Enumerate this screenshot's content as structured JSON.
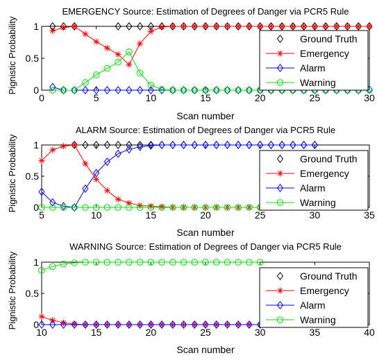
{
  "chart_data": [
    {
      "type": "line",
      "title": "EMERGENCY Source: Estimation of Degrees of Danger via PCR5 Rule",
      "xlabel": "Scan number",
      "ylabel": "Pignistic Probability",
      "xlim": [
        0,
        30
      ],
      "ylim": [
        0,
        1
      ],
      "xticks": [
        "0",
        "5",
        "10",
        "15",
        "20",
        "25",
        "30"
      ],
      "yticks": [
        "0",
        "0.5",
        "1"
      ],
      "grid": false,
      "legend_position": "right",
      "x": [
        1,
        2,
        3,
        4,
        5,
        6,
        7,
        8,
        9,
        10,
        11,
        12,
        13,
        14,
        15,
        16,
        17,
        18,
        19,
        20,
        21,
        22,
        23,
        24,
        25,
        26,
        27,
        28,
        29,
        30
      ],
      "series": [
        {
          "name": "Ground Truth",
          "marker": "diamond",
          "line": "none",
          "color": "#000000",
          "values": [
            1,
            1,
            1,
            null,
            null,
            null,
            1,
            1,
            1,
            1,
            1,
            1,
            1,
            1,
            1,
            1,
            1,
            1,
            1,
            1,
            1,
            1,
            1,
            1,
            1,
            1,
            1,
            1,
            1,
            1
          ]
        },
        {
          "name": "Emergency",
          "marker": "star",
          "line": "solid",
          "color": "#ff0000",
          "values": [
            0.93,
            0.98,
            1.0,
            0.88,
            0.76,
            0.66,
            0.56,
            0.4,
            0.73,
            0.92,
            0.99,
            1,
            1,
            1,
            1,
            1,
            1,
            1,
            1,
            1,
            1,
            1,
            1,
            1,
            1,
            1,
            1,
            1,
            1,
            1
          ]
        },
        {
          "name": "Alarm",
          "marker": "diamond",
          "line": "solid",
          "color": "#0000ff",
          "values": [
            0.05,
            0,
            0,
            0,
            0,
            0,
            0,
            0,
            0,
            0,
            0,
            0,
            0,
            0,
            0,
            0,
            0,
            0,
            0,
            0,
            0,
            0,
            0,
            0,
            0,
            0,
            0,
            0,
            0,
            0.01
          ]
        },
        {
          "name": "Warning",
          "marker": "circle",
          "line": "solid",
          "color": "#00dd00",
          "values": [
            0,
            0,
            0,
            0.12,
            0.24,
            0.34,
            0.44,
            0.6,
            0.27,
            0.08,
            0.01,
            0,
            0,
            0,
            0,
            0,
            0,
            0,
            0,
            0,
            0,
            0,
            0,
            0,
            0,
            0,
            0,
            0,
            0,
            0
          ]
        }
      ]
    },
    {
      "type": "line",
      "title": "ALARM Source: Estimation of Degrees of Danger via PCR5 Rule",
      "xlabel": "Scan number",
      "ylabel": "Pignistic Probability",
      "xlim": [
        5,
        35
      ],
      "ylim": [
        0,
        1
      ],
      "xticks": [
        "5",
        "10",
        "15",
        "20",
        "25",
        "30",
        "35"
      ],
      "yticks": [
        "0",
        "0.5",
        "1"
      ],
      "grid": false,
      "legend_position": "right",
      "x": [
        5,
        6,
        7,
        8,
        9,
        10,
        11,
        12,
        13,
        14,
        15,
        16,
        17,
        18,
        19,
        20,
        21,
        22,
        23,
        24,
        25,
        26,
        27,
        28,
        29,
        30
      ],
      "series": [
        {
          "name": "Ground Truth",
          "marker": "diamond",
          "line": "none",
          "color": "#000000",
          "values": [
            null,
            null,
            null,
            1,
            1,
            1,
            1,
            1,
            1,
            1,
            1,
            1,
            1,
            1,
            1,
            1,
            1,
            1,
            1,
            1,
            1,
            1,
            1,
            1,
            1,
            1
          ]
        },
        {
          "name": "Emergency",
          "marker": "star",
          "line": "solid",
          "color": "#ff0000",
          "values": [
            0.75,
            0.92,
            0.98,
            1.0,
            0.7,
            0.45,
            0.27,
            0.13,
            0.07,
            0.03,
            0.02,
            0.01,
            0,
            0,
            0,
            0,
            0,
            0,
            0,
            0,
            0,
            0,
            0,
            0,
            0,
            0
          ]
        },
        {
          "name": "Alarm",
          "marker": "diamond",
          "line": "solid",
          "color": "#0000ff",
          "values": [
            0.25,
            0.08,
            0.02,
            0,
            0.3,
            0.55,
            0.73,
            0.86,
            0.93,
            0.97,
            0.99,
            1,
            1,
            1,
            1,
            1,
            1,
            1,
            1,
            1,
            1,
            1,
            1,
            1,
            1,
            1
          ]
        },
        {
          "name": "Warning",
          "marker": "circle",
          "line": "solid",
          "color": "#00dd00",
          "values": [
            0,
            0,
            0,
            0,
            0,
            0,
            0,
            0,
            0,
            0,
            0,
            0,
            0,
            0,
            0,
            0,
            0,
            0,
            0,
            0,
            0,
            0,
            0,
            0,
            0,
            0
          ]
        }
      ]
    },
    {
      "type": "line",
      "title": "WARNING Source: Estimation of Degrees of Danger via PCR5 Rule",
      "xlabel": "Scan number",
      "ylabel": "Pignistic Probability",
      "xlim": [
        10,
        40
      ],
      "ylim": [
        0,
        1
      ],
      "xticks": [
        "10",
        "15",
        "20",
        "25",
        "30",
        "35",
        "40"
      ],
      "yticks": [
        "0",
        "0.5",
        "1"
      ],
      "grid": false,
      "legend_position": "right",
      "x": [
        10,
        11,
        12,
        13,
        14,
        15,
        16,
        17,
        18,
        19,
        20,
        21,
        22,
        23,
        24,
        25,
        26,
        27,
        28,
        29,
        30
      ],
      "series": [
        {
          "name": "Ground Truth",
          "marker": "diamond",
          "line": "none",
          "color": "#000000",
          "values": [
            null,
            null,
            null,
            null,
            null,
            null,
            null,
            null,
            null,
            null,
            null,
            null,
            null,
            null,
            null,
            null,
            null,
            null,
            null,
            null,
            null
          ]
        },
        {
          "name": "Emergency",
          "marker": "star",
          "line": "solid",
          "color": "#ff0000",
          "values": [
            0.13,
            0.07,
            0.03,
            0.01,
            0,
            0,
            0,
            0,
            0,
            0,
            0,
            0,
            0,
            0,
            0,
            0,
            0,
            0,
            0,
            0,
            0
          ]
        },
        {
          "name": "Alarm",
          "marker": "diamond",
          "line": "solid",
          "color": "#0000ff",
          "values": [
            0,
            0,
            0,
            0,
            0,
            0,
            0,
            0,
            0,
            0,
            0,
            0,
            0,
            0,
            0,
            0,
            0,
            0,
            0,
            0,
            0
          ]
        },
        {
          "name": "Warning",
          "marker": "circle",
          "line": "solid",
          "color": "#00dd00",
          "values": [
            0.87,
            0.93,
            0.97,
            0.99,
            1,
            1,
            1,
            1,
            1,
            1,
            1,
            1,
            1,
            1,
            1,
            1,
            1,
            1,
            1,
            1,
            1
          ]
        }
      ]
    }
  ]
}
